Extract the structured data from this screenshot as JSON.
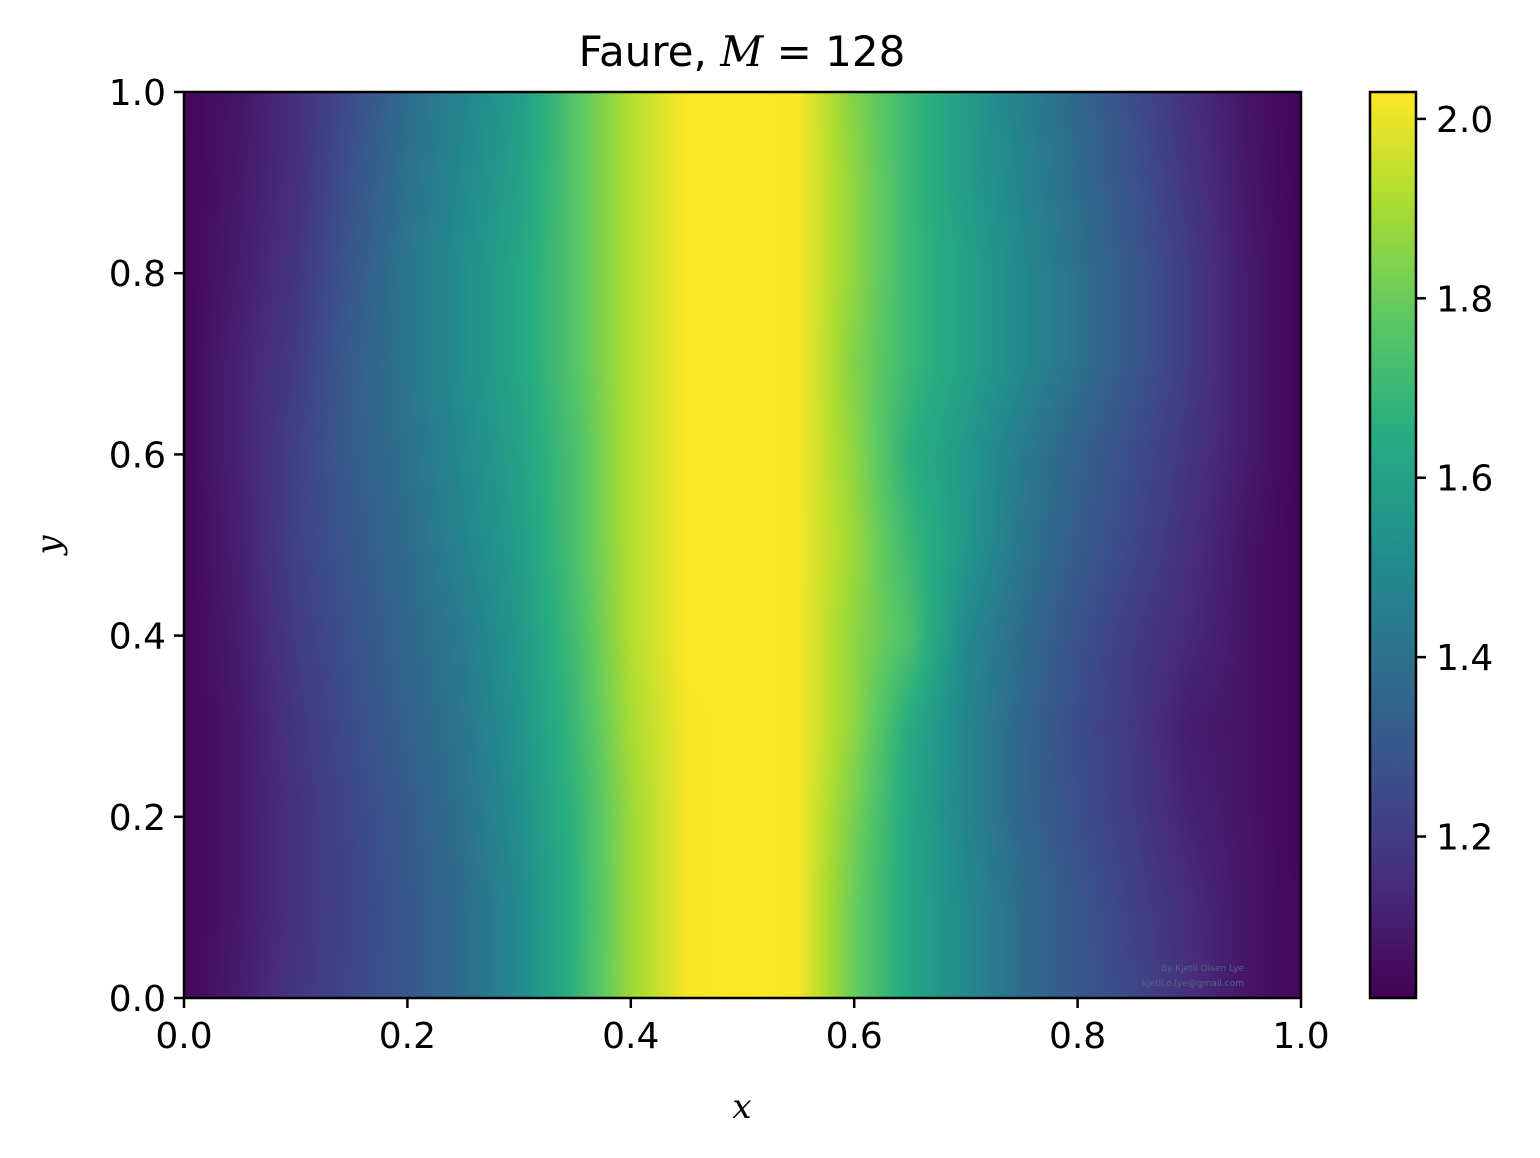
{
  "chart_data": {
    "type": "heatmap",
    "title": {
      "prefix": "Faure, ",
      "variable": "M",
      "operator": " = ",
      "value": "128"
    },
    "xlabel": "x",
    "ylabel": "y",
    "xlim": [
      0.0,
      1.0
    ],
    "ylim": [
      0.0,
      1.0
    ],
    "xticks": [
      "0.0",
      "0.2",
      "0.4",
      "0.6",
      "0.8",
      "1.0"
    ],
    "yticks": [
      "0.0",
      "0.2",
      "0.4",
      "0.6",
      "0.8",
      "1.0"
    ],
    "colormap": "viridis",
    "colorbar": {
      "range": [
        1.02,
        2.03
      ],
      "ticks": [
        1.2,
        1.4,
        1.6,
        1.8,
        2.0
      ],
      "tick_labels": [
        "1.2",
        "1.4",
        "1.6",
        "1.8",
        "2.0"
      ]
    },
    "x_grid": [
      0.0,
      0.05,
      0.1,
      0.15,
      0.2,
      0.25,
      0.3,
      0.35,
      0.4,
      0.45,
      0.5,
      0.55,
      0.6,
      0.65,
      0.7,
      0.75,
      0.8,
      0.85,
      0.9,
      0.95,
      1.0
    ],
    "y_grid": [
      0.0,
      0.1,
      0.2,
      0.3,
      0.4,
      0.5,
      0.6,
      0.7,
      0.8,
      0.9,
      1.0
    ],
    "values": [
      [
        1.04,
        1.1,
        1.18,
        1.24,
        1.3,
        1.38,
        1.5,
        1.68,
        1.88,
        2.02,
        2.03,
        2.02,
        1.8,
        1.62,
        1.5,
        1.38,
        1.3,
        1.24,
        1.16,
        1.08,
        1.04
      ],
      [
        1.04,
        1.09,
        1.17,
        1.23,
        1.3,
        1.38,
        1.5,
        1.67,
        1.88,
        2.02,
        2.03,
        2.02,
        1.8,
        1.62,
        1.5,
        1.38,
        1.3,
        1.22,
        1.15,
        1.08,
        1.04
      ],
      [
        1.04,
        1.09,
        1.17,
        1.24,
        1.31,
        1.4,
        1.52,
        1.68,
        1.88,
        2.02,
        2.03,
        2.02,
        1.82,
        1.62,
        1.48,
        1.36,
        1.27,
        1.2,
        1.12,
        1.08,
        1.03
      ],
      [
        1.04,
        1.09,
        1.18,
        1.26,
        1.34,
        1.42,
        1.54,
        1.7,
        1.9,
        2.02,
        2.03,
        2.02,
        1.86,
        1.64,
        1.48,
        1.36,
        1.26,
        1.19,
        1.1,
        1.08,
        1.03
      ],
      [
        1.04,
        1.1,
        1.2,
        1.28,
        1.36,
        1.44,
        1.56,
        1.72,
        1.92,
        2.03,
        2.03,
        2.02,
        1.86,
        1.74,
        1.5,
        1.38,
        1.28,
        1.2,
        1.14,
        1.08,
        1.03
      ],
      [
        1.04,
        1.11,
        1.22,
        1.3,
        1.38,
        1.48,
        1.58,
        1.74,
        1.92,
        2.03,
        2.03,
        2.02,
        1.88,
        1.7,
        1.56,
        1.42,
        1.32,
        1.24,
        1.16,
        1.08,
        1.03
      ],
      [
        1.04,
        1.12,
        1.22,
        1.32,
        1.4,
        1.5,
        1.6,
        1.74,
        1.92,
        2.03,
        2.03,
        2.02,
        1.86,
        1.66,
        1.56,
        1.44,
        1.34,
        1.26,
        1.18,
        1.1,
        1.03
      ],
      [
        1.04,
        1.12,
        1.2,
        1.32,
        1.42,
        1.52,
        1.62,
        1.76,
        1.92,
        2.03,
        2.03,
        2.02,
        1.84,
        1.7,
        1.6,
        1.5,
        1.4,
        1.3,
        1.2,
        1.1,
        1.03
      ],
      [
        1.04,
        1.1,
        1.18,
        1.3,
        1.42,
        1.52,
        1.62,
        1.76,
        1.92,
        2.03,
        2.03,
        2.02,
        1.86,
        1.7,
        1.6,
        1.5,
        1.4,
        1.3,
        1.2,
        1.1,
        1.03
      ],
      [
        1.04,
        1.09,
        1.16,
        1.28,
        1.4,
        1.5,
        1.6,
        1.76,
        1.92,
        2.03,
        2.03,
        2.02,
        1.86,
        1.7,
        1.58,
        1.48,
        1.38,
        1.28,
        1.18,
        1.09,
        1.03
      ],
      [
        1.04,
        1.08,
        1.16,
        1.26,
        1.38,
        1.48,
        1.58,
        1.76,
        1.92,
        2.03,
        2.03,
        2.02,
        1.84,
        1.7,
        1.58,
        1.46,
        1.36,
        1.26,
        1.16,
        1.08,
        1.03
      ]
    ]
  },
  "credit": {
    "line1": "By Kjetil Olsen Lye",
    "line2": "kjetil.o.lye@gmail.com"
  }
}
